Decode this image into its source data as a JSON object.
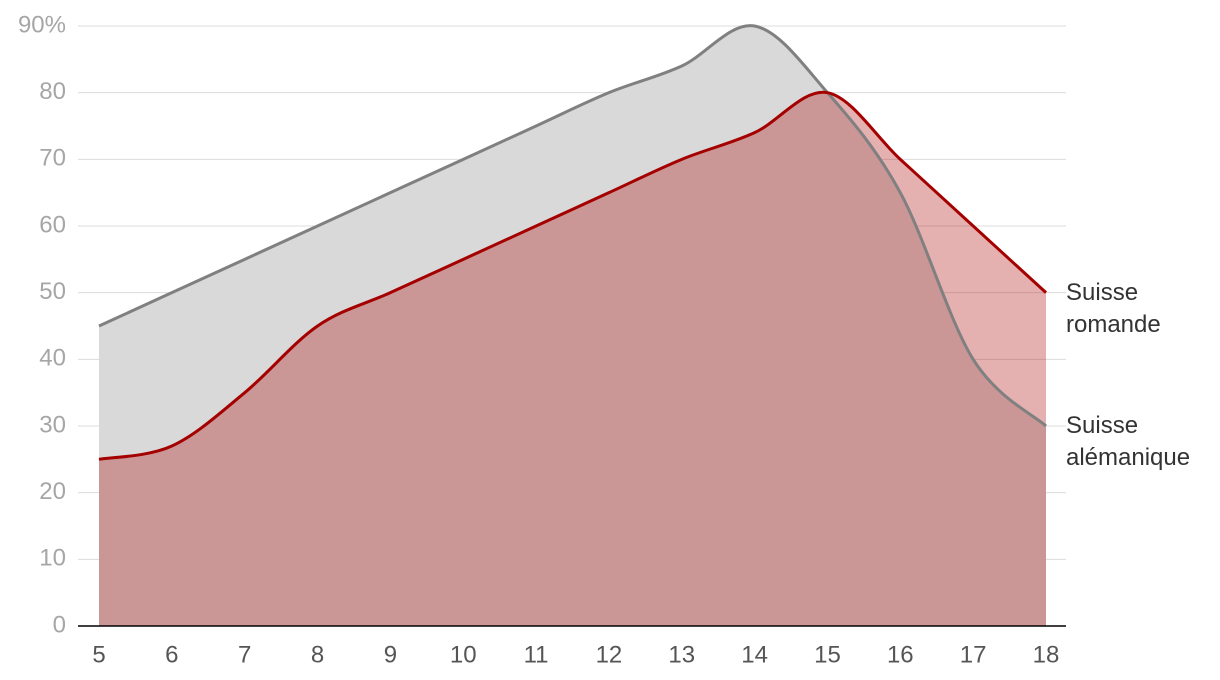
{
  "chart_data": {
    "type": "area",
    "x": [
      5,
      6,
      7,
      8,
      9,
      10,
      11,
      12,
      13,
      14,
      15,
      16,
      17,
      18
    ],
    "series": [
      {
        "name": "Suisse alémanique",
        "color": "#808080",
        "fill": "#d9d9d9",
        "values": [
          45,
          50,
          55,
          60,
          65,
          70,
          75,
          80,
          84,
          90,
          80,
          65,
          40,
          30
        ]
      },
      {
        "name": "Suisse romande",
        "color": "#a50000",
        "fill": "#aa0000",
        "values": [
          25,
          27,
          35,
          45,
          50,
          55,
          60,
          65,
          70,
          74,
          80,
          70,
          60,
          50
        ]
      }
    ],
    "xlim": [
      5,
      18
    ],
    "xticks": [
      5,
      6,
      7,
      8,
      9,
      10,
      11,
      12,
      13,
      14,
      15,
      16,
      17,
      18
    ],
    "ylim": [
      0,
      90
    ],
    "yticks": [
      0,
      10,
      20,
      30,
      40,
      50,
      60,
      70,
      80,
      {
        "value": 90,
        "label": "90%"
      }
    ],
    "grid": true
  }
}
